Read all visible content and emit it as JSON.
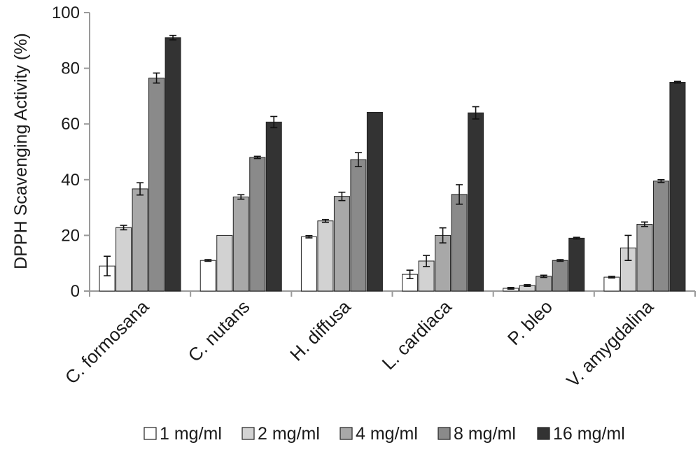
{
  "chart_data": {
    "type": "bar",
    "title": "",
    "xlabel": "",
    "ylabel": "DPPH Scavenging Activity (%)",
    "ylim": [
      0,
      100
    ],
    "yticks": [
      "0",
      "20",
      "40",
      "60",
      "80",
      "100"
    ],
    "grid": false,
    "legend_position": "bottom",
    "categories": [
      "C. formosana",
      "C. nutans",
      "H. diffusa",
      "L. cardiaca",
      "P. bleo",
      "V. amygdalina"
    ],
    "series": [
      {
        "name": "1 mg/ml",
        "color": "#ffffff",
        "values": [
          9,
          11,
          19.5,
          6,
          1,
          5
        ],
        "errors": [
          3.5,
          0.3,
          0.4,
          1.5,
          0.3,
          0.3
        ]
      },
      {
        "name": "2 mg/ml",
        "color": "#d2d2d2",
        "values": [
          22.8,
          20,
          25.2,
          10.8,
          2,
          15.5
        ],
        "errors": [
          0.8,
          0,
          0.5,
          2,
          0.3,
          4.5
        ]
      },
      {
        "name": "4 mg/ml",
        "color": "#a8a8a8",
        "values": [
          36.7,
          33.8,
          34,
          20,
          5.3,
          24
        ],
        "errors": [
          2.2,
          0.8,
          1.5,
          2.7,
          0.4,
          0.8
        ]
      },
      {
        "name": "8 mg/ml",
        "color": "#8a8a8a",
        "values": [
          76.5,
          48,
          47.2,
          34.7,
          11,
          39.5
        ],
        "errors": [
          1.8,
          0.4,
          2.5,
          3.5,
          0.3,
          0.5
        ]
      },
      {
        "name": "16 mg/ml",
        "color": "#333333",
        "values": [
          91,
          60.7,
          64.2,
          64,
          19,
          75
        ],
        "errors": [
          0.8,
          2,
          0,
          2.2,
          0.3,
          0.3
        ]
      }
    ]
  }
}
